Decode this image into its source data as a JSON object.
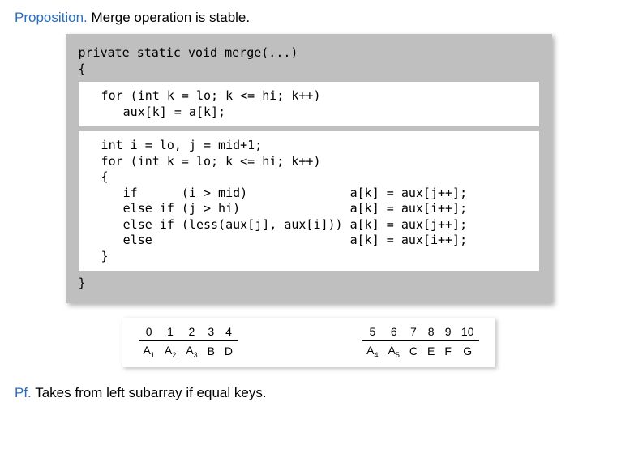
{
  "proposition": {
    "label": "Proposition.",
    "text": " Merge operation is stable."
  },
  "proof": {
    "label": "Pf.",
    "text": " Takes from left subarray if equal keys."
  },
  "code": {
    "head1": "private static void merge(...)",
    "head2": "{",
    "block1": "  for (int k = lo; k <= hi; k++)\n     aux[k] = a[k];",
    "block2": "  int i = lo, j = mid+1;\n  for (int k = lo; k <= hi; k++)\n  {\n     if      (i > mid)              a[k] = aux[j++];\n     else if (j > hi)               a[k] = aux[i++];\n     else if (less(aux[j], aux[i])) a[k] = aux[j++];\n     else                           a[k] = aux[i++];\n  }",
    "tail": "}"
  },
  "leftTable": {
    "indices": [
      "0",
      "1",
      "2",
      "3",
      "4"
    ],
    "values": [
      {
        "t": "A",
        "s": "1"
      },
      {
        "t": "A",
        "s": "2"
      },
      {
        "t": "A",
        "s": "3"
      },
      {
        "t": "B",
        "s": ""
      },
      {
        "t": "D",
        "s": ""
      }
    ]
  },
  "rightTable": {
    "indices": [
      "5",
      "6",
      "7",
      "8",
      "9",
      "10"
    ],
    "values": [
      {
        "t": "A",
        "s": "4"
      },
      {
        "t": "A",
        "s": "5"
      },
      {
        "t": "C",
        "s": ""
      },
      {
        "t": "E",
        "s": ""
      },
      {
        "t": "F",
        "s": ""
      },
      {
        "t": "G",
        "s": ""
      }
    ]
  },
  "colors": {
    "label": "#2a6dc0",
    "codeBg": "#bfbfbf",
    "innerBg": "#ffffff"
  }
}
